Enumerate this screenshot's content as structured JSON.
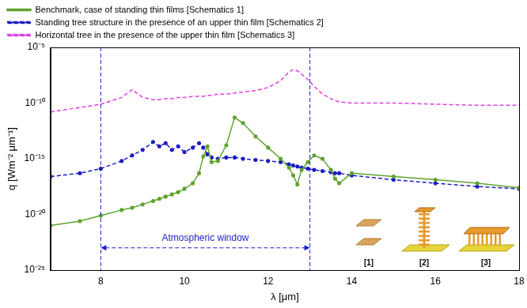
{
  "chart_data": {
    "type": "line",
    "x_label": "λ [μm]",
    "y_label": "q [Wm⁻² μm⁻¹]",
    "log": "y",
    "grid": false,
    "legend": "top",
    "xlim": [
      6.8,
      18
    ],
    "xticks": [
      8,
      10,
      12,
      14,
      16,
      18
    ],
    "ylim": [
      1e-25,
      1e-05
    ],
    "yticks": [
      {
        "value": 1e-25,
        "label": "10⁻²⁵"
      },
      {
        "value": 1e-20,
        "label": "10⁻²⁰"
      },
      {
        "value": 1e-15,
        "label": "10⁻¹⁵"
      },
      {
        "value": 1e-10,
        "label": "10⁻¹⁰"
      },
      {
        "value": 1e-05,
        "label": "10⁻⁵"
      }
    ],
    "x": [
      6.8,
      7.5,
      8,
      8.5,
      8.75,
      9,
      9.25,
      9.4,
      9.55,
      9.7,
      9.85,
      10,
      10.2,
      10.35,
      10.45,
      10.55,
      10.65,
      10.8,
      11,
      11.2,
      11.4,
      11.7,
      12,
      12.3,
      12.5,
      12.6,
      12.7,
      12.8,
      12.95,
      13.1,
      13.3,
      13.5,
      13.6,
      13.7,
      14,
      15,
      16,
      17,
      18
    ],
    "series": [
      {
        "name": "Benchmark, case of standing thin films [Schematics 1]",
        "color": "#5fa32e",
        "marker": "circle",
        "line_style": "solid",
        "values": [
          1e-21,
          2.5e-21,
          7.9e-21,
          2.5e-20,
          4e-20,
          7.9e-20,
          1.6e-19,
          2.5e-19,
          4e-19,
          6.3e-19,
          1e-18,
          2e-18,
          6.3e-18,
          5e-17,
          1.6e-15,
          1.3e-14,
          5e-16,
          6.3e-16,
          1.6e-14,
          5e-12,
          1.6e-12,
          1e-13,
          1e-14,
          1e-15,
          1.6e-16,
          3.2e-17,
          5e-18,
          1e-16,
          5e-16,
          2e-15,
          1e-15,
          1e-16,
          1.6e-17,
          6.3e-18,
          5e-17,
          2.5e-17,
          1.3e-17,
          6.3e-18,
          2.5e-18
        ]
      },
      {
        "name": "Standing tree structure in the presence of an upper thin film [Schematics 2]",
        "color": "#1c1cc4",
        "marker": "circle",
        "line_style": "dashed",
        "values": [
          2.5e-17,
          5e-17,
          1.3e-16,
          6.3e-16,
          2e-15,
          6.3e-15,
          3.2e-14,
          1.3e-14,
          2.5e-14,
          6.3e-15,
          1.3e-14,
          4e-15,
          1e-14,
          2.5e-14,
          1e-14,
          2.5e-15,
          1.3e-15,
          1e-15,
          1.3e-15,
          1.3e-15,
          1e-15,
          7.9e-16,
          6.3e-16,
          5e-16,
          3.2e-16,
          2.5e-16,
          2e-16,
          1.6e-16,
          1.3e-16,
          1e-16,
          7.9e-17,
          6.3e-17,
          5e-17,
          5e-17,
          3.2e-17,
          1.3e-17,
          6.3e-18,
          3.2e-18,
          2e-18
        ]
      },
      {
        "name": "Horizontal tree in the presence of the upper thin film [Schematics 3]",
        "color": "#e040e0",
        "marker": "none",
        "line_style": "dashed",
        "values": [
          1.6e-11,
          4e-11,
          7.9e-11,
          3.2e-10,
          1.6e-09,
          3.2e-10,
          2e-10,
          2e-10,
          2.5e-10,
          2.5e-10,
          3.2e-10,
          3.2e-10,
          4e-10,
          4e-10,
          4e-10,
          5e-10,
          5e-10,
          6.3e-10,
          6.3e-10,
          7.9e-10,
          1e-09,
          1.3e-09,
          2.5e-09,
          1e-08,
          6.3e-08,
          1e-07,
          7.9e-08,
          4e-08,
          1.3e-08,
          3.2e-09,
          6.3e-10,
          2.5e-10,
          1.6e-10,
          1.3e-10,
          1e-10,
          1e-10,
          7.9e-11,
          6.3e-11,
          6.3e-11
        ]
      }
    ],
    "annotations": [
      {
        "text": "Atmospheric window",
        "x": [
          8,
          13
        ],
        "y": 1e-23,
        "color": "#1c1cc4"
      }
    ],
    "schematic_labels": [
      "[1]",
      "[2]",
      "[3]"
    ]
  }
}
